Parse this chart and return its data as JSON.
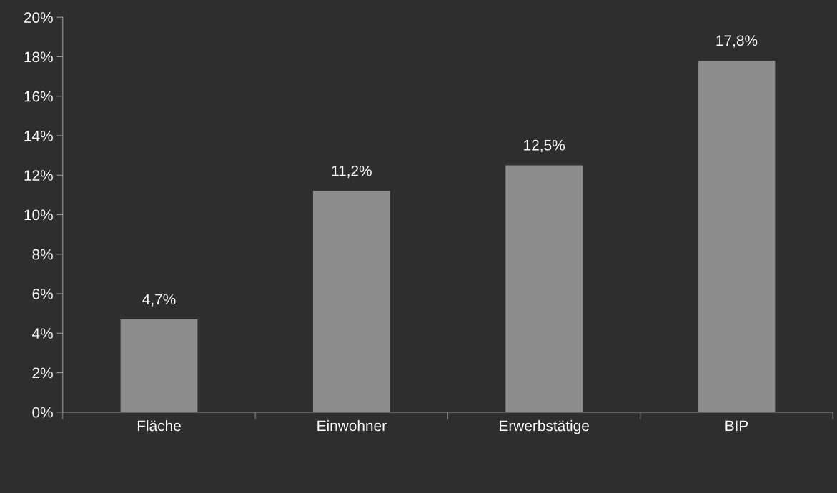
{
  "chart_data": {
    "type": "bar",
    "categories": [
      "Fläche",
      "Einwohner",
      "Erwerbstätige",
      "BIP"
    ],
    "values": [
      4.7,
      11.2,
      12.5,
      17.8
    ],
    "value_labels": [
      "4,7%",
      "11,2%",
      "12,5%",
      "17,8%"
    ],
    "color": "#8c8c8c",
    "ylim": [
      0,
      20
    ],
    "yticks": [
      {
        "value": 0,
        "label": "0%"
      },
      {
        "value": 2,
        "label": "2%"
      },
      {
        "value": 4,
        "label": "4%"
      },
      {
        "value": 6,
        "label": "6%"
      },
      {
        "value": 8,
        "label": "8%"
      },
      {
        "value": 10,
        "label": "10%"
      },
      {
        "value": 12,
        "label": "12%"
      },
      {
        "value": 14,
        "label": "14%"
      },
      {
        "value": 16,
        "label": "16%"
      },
      {
        "value": 18,
        "label": "18%"
      },
      {
        "value": 20,
        "label": "20%"
      }
    ],
    "grid": false,
    "legend": false
  }
}
